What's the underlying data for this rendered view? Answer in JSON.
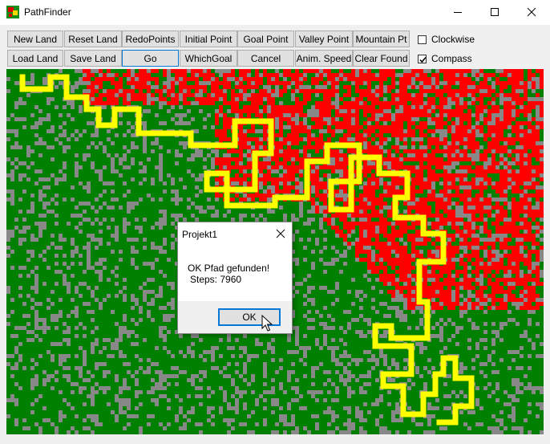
{
  "window": {
    "title": "PathFinder"
  },
  "toolbar": {
    "row1": [
      "New Land",
      "Reset Land",
      "RedoPoints",
      "Initial Point",
      "Goal Point",
      "Valley Point",
      "Mountain Pt"
    ],
    "row2": [
      "Load Land",
      "Save Land",
      "Go",
      "WhichGoal",
      "Cancel",
      "Anim. Speed",
      "Clear Found"
    ],
    "checkboxes": [
      {
        "label": "Clockwise",
        "checked": false
      },
      {
        "label": "Compass",
        "checked": true
      }
    ]
  },
  "map": {
    "colors": {
      "lowland": "#008000",
      "mountain": "#ff0000",
      "rock": "#888888",
      "path": "#ffff00"
    }
  },
  "dialog": {
    "title": "Projekt1",
    "message": "OK Pfad gefunden!",
    "steps": "Steps: 7960",
    "ok_label": "OK"
  }
}
